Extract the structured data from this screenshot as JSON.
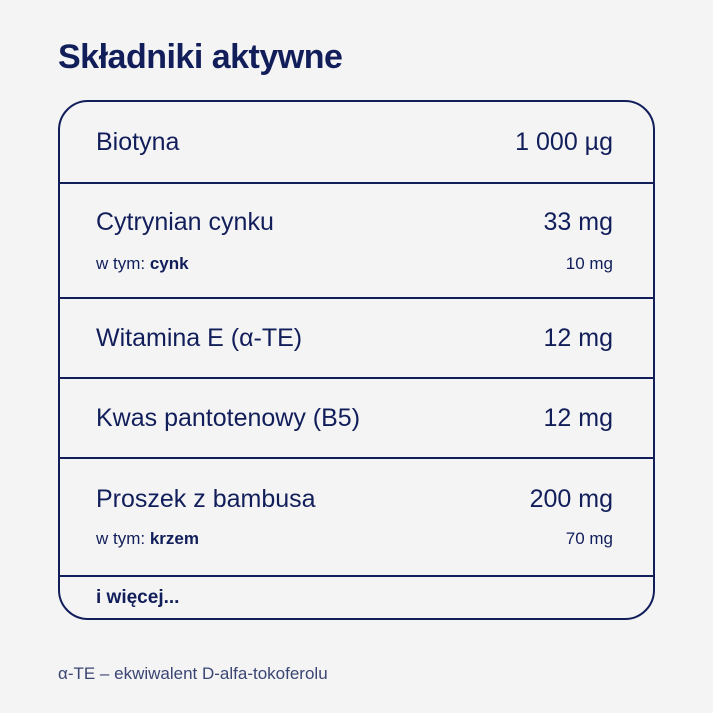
{
  "title": "Składniki aktywne",
  "rows": [
    {
      "name": "Biotyna",
      "amount": "1 000 µg"
    },
    {
      "name": "Cytrynian cynku",
      "amount": "33 mg",
      "sub_prefix": "w tym:",
      "sub_name": "cynk",
      "sub_amount": "10 mg"
    },
    {
      "name": "Witamina E (α-TE)",
      "amount": "12 mg"
    },
    {
      "name": "Kwas pantotenowy (B5)",
      "amount": "12 mg"
    },
    {
      "name": "Proszek z bambusa",
      "amount": "200 mg",
      "sub_prefix": "w tym:",
      "sub_name": "krzem",
      "sub_amount": "70 mg"
    }
  ],
  "more": "i więcej...",
  "footnote": "α-TE – ekwiwalent D-alfa-tokoferolu"
}
